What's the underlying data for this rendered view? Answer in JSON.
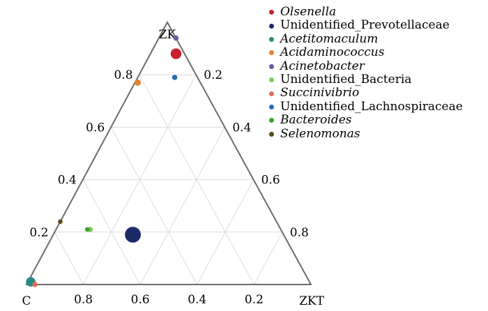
{
  "chart_data": {
    "type": "ternary",
    "vertices": {
      "top": "ZK",
      "bottom_left": "C",
      "bottom_right": "ZKT"
    },
    "ticks": {
      "left_axis": [
        "0.2",
        "0.4",
        "0.6",
        "0.8"
      ],
      "right_axis": [
        "0.2",
        "0.4",
        "0.6",
        "0.8"
      ],
      "bottom_axis": [
        "0.8",
        "0.6",
        "0.4",
        "0.2"
      ]
    },
    "grid": true,
    "legend_position": "top-right",
    "series": [
      {
        "name": "Olsenella",
        "italic": true,
        "color": "#c8202c",
        "ZK": 0.88,
        "ZKT": 0.09,
        "C": 0.03,
        "abundance": 4
      },
      {
        "name": "Unidentified_Prevotellaceae",
        "italic": false,
        "color": "#1b2a66",
        "ZK": 0.19,
        "ZKT": 0.28,
        "C": 0.53,
        "abundance": 10
      },
      {
        "name": "Acetitomaculum",
        "italic": true,
        "color": "#2a8a86",
        "ZK": 0.01,
        "ZKT": 0.01,
        "C": 0.98,
        "abundance": 3
      },
      {
        "name": "Acidaminococcus",
        "italic": true,
        "color": "#e8822a",
        "ZK": 0.77,
        "ZKT": 0.01,
        "C": 0.22,
        "abundance": 1
      },
      {
        "name": "Acinetobacter",
        "italic": true,
        "color": "#6a5aa0",
        "ZK": 0.94,
        "ZKT": 0.06,
        "C": 0.0,
        "abundance": 0.6
      },
      {
        "name": "Unidentified_Bacteria",
        "italic": false,
        "color": "#7ec850",
        "ZK": 0.21,
        "ZKT": 0.12,
        "C": 0.67,
        "abundance": 0.6
      },
      {
        "name": "Succinivibrio",
        "italic": true,
        "color": "#e26a5a",
        "ZK": 0.0,
        "ZKT": 0.03,
        "C": 0.97,
        "abundance": 0.6
      },
      {
        "name": "Unidentified_Lachnospiraceae",
        "italic": false,
        "color": "#2a6ab8",
        "ZK": 0.79,
        "ZKT": 0.13,
        "C": 0.08,
        "abundance": 0.6
      },
      {
        "name": "Bacteroides",
        "italic": true,
        "color": "#3aa030",
        "ZK": 0.21,
        "ZKT": 0.11,
        "C": 0.68,
        "abundance": 0.4
      },
      {
        "name": "Selenomonas",
        "italic": true,
        "color": "#5a4a10",
        "ZK": 0.24,
        "ZKT": 0.0,
        "C": 0.76,
        "abundance": 0.4
      }
    ]
  }
}
